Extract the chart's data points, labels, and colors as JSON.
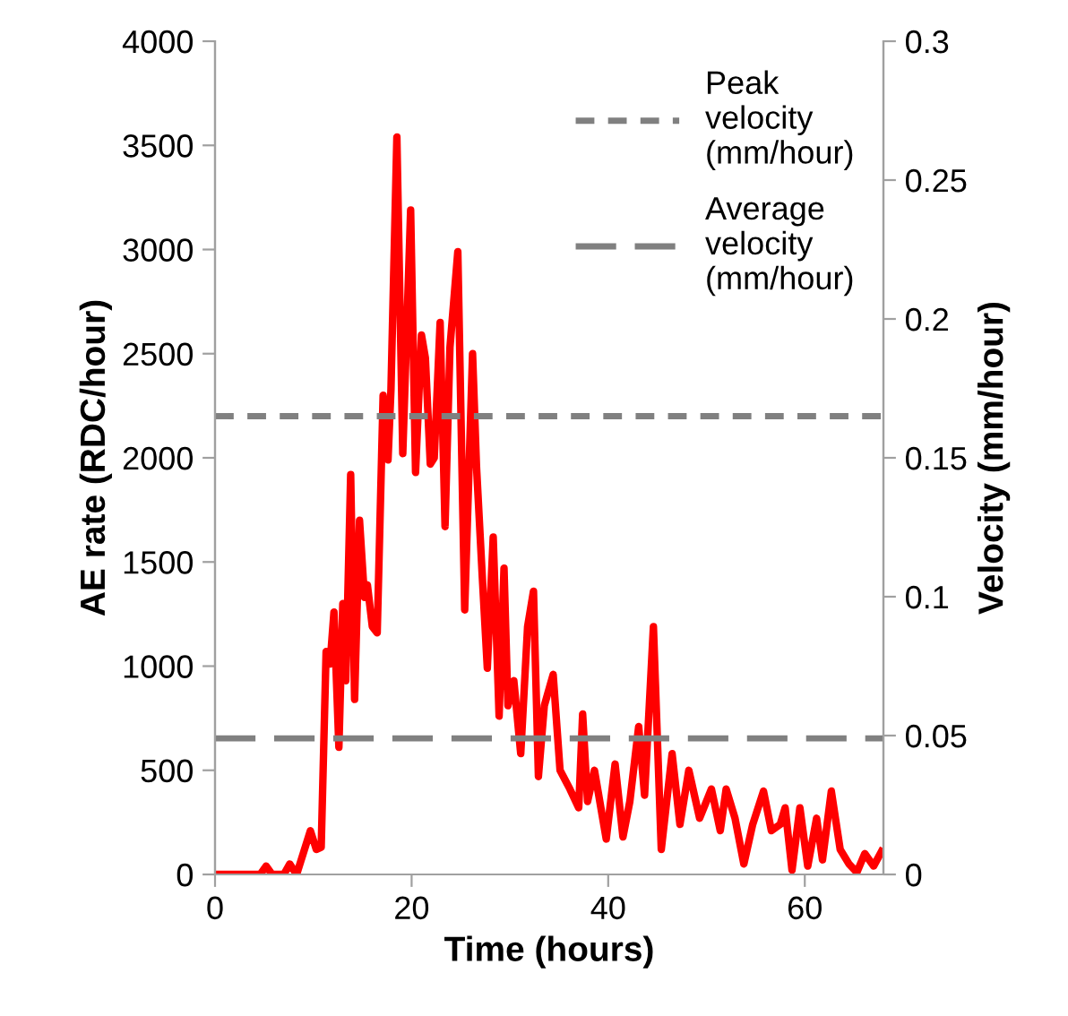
{
  "chart_data": {
    "type": "line",
    "xlabel": "Time (hours)",
    "ylabel": "AE rate (RDC/hour)",
    "y2label": "Velocity (mm/hour)",
    "xlim": [
      0,
      68
    ],
    "xticks": [
      0,
      20,
      40,
      60
    ],
    "ylim": [
      0,
      4000
    ],
    "yticks": [
      0,
      500,
      1000,
      1500,
      2000,
      2500,
      3000,
      3500,
      4000
    ],
    "y2lim": [
      0,
      0.3
    ],
    "y2ticks": [
      0,
      0.05,
      0.1,
      0.15,
      0.2,
      0.25,
      0.3
    ],
    "grid": false,
    "legend": "top right",
    "marker": "none",
    "series": [
      {
        "color": "#ff0000",
        "line_style": "solid",
        "x": [
          0,
          4.6,
          5.2,
          5.8,
          7.0,
          7.6,
          8.3,
          9.7,
          10.3,
          10.8,
          11.3,
          11.7,
          12.1,
          12.6,
          13.0,
          13.3,
          13.8,
          14.2,
          14.7,
          15.2,
          15.5,
          16.0,
          16.5,
          17.1,
          17.6,
          17.9,
          18.5,
          19.1,
          19.9,
          20.4,
          21.0,
          21.4,
          21.9,
          22.3,
          22.9,
          23.4,
          23.9,
          24.7,
          25.4,
          26.2,
          26.6,
          27.2,
          27.7,
          28.3,
          28.9,
          29.4,
          29.8,
          30.4,
          31.1,
          31.8,
          32.4,
          32.9,
          33.5,
          34.4,
          35.1,
          36.1,
          37.0,
          37.4,
          37.9,
          38.6,
          39.8,
          40.7,
          41.5,
          42.2,
          43.1,
          43.7,
          44.6,
          45.4,
          46.5,
          47.3,
          48.2,
          49.3,
          50.5,
          51.4,
          52.0,
          52.9,
          53.8,
          54.7,
          55.8,
          56.6,
          57.5,
          58.0,
          58.7,
          59.5,
          60.3,
          61.2,
          61.8,
          62.7,
          63.6,
          64.5,
          65.3,
          66.1,
          67.0,
          67.8
        ],
        "values": [
          0,
          0,
          40,
          0,
          0,
          50,
          0,
          210,
          120,
          130,
          1070,
          1010,
          1260,
          610,
          1300,
          930,
          1920,
          840,
          1700,
          1330,
          1390,
          1190,
          1160,
          2300,
          1990,
          2330,
          3540,
          2020,
          3190,
          1930,
          2590,
          2480,
          1970,
          2000,
          2650,
          1670,
          2530,
          2990,
          1270,
          2500,
          1960,
          1420,
          990,
          1620,
          760,
          1470,
          810,
          930,
          580,
          1190,
          1360,
          470,
          810,
          960,
          500,
          410,
          320,
          770,
          350,
          500,
          170,
          530,
          180,
          350,
          710,
          380,
          1190,
          120,
          580,
          240,
          500,
          270,
          410,
          210,
          410,
          270,
          50,
          240,
          400,
          210,
          240,
          320,
          20,
          320,
          40,
          270,
          70,
          400,
          120,
          50,
          10,
          100,
          40,
          110
        ]
      }
    ],
    "ref_lines": [
      {
        "axis": "y2",
        "value": 0.165,
        "label": "Peak velocity (mm/hour)",
        "color": "#808080",
        "line_style": "dashed"
      },
      {
        "axis": "y2",
        "value": 0.049,
        "label": "Average velocity (mm/hour)",
        "color": "#808080",
        "line_style": "dashed"
      }
    ]
  }
}
